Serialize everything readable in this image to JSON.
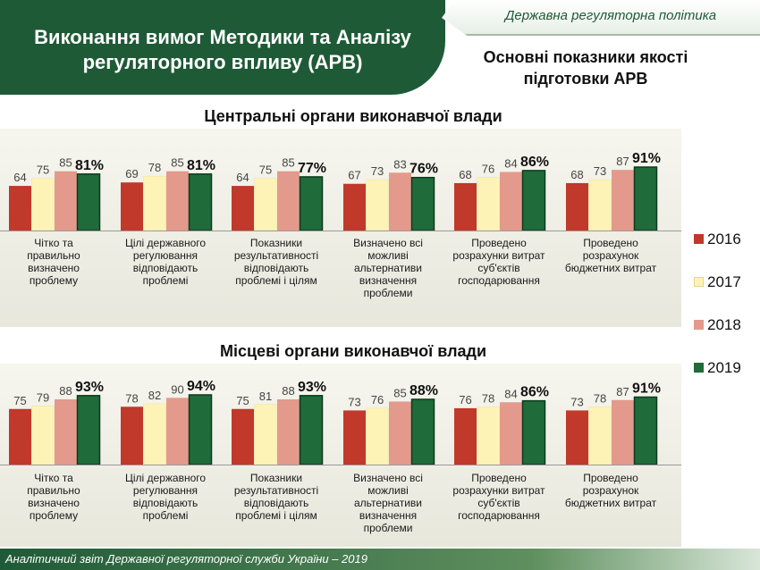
{
  "header": {
    "title": "Виконання вимог Методики та Аналізу регуляторного впливу (АРВ)",
    "policy": "Державна регуляторна політика"
  },
  "subtitle": "Основні показники якості підготовки АРВ",
  "footer": "Аналітичний звіт Державної регуляторної служби України – 2019",
  "chart_data": [
    {
      "type": "bar",
      "title": "Центральні органи виконавчої влади",
      "categories": [
        "Чітко та правильно визначено проблему",
        "Цілі державного регулювання відповідають проблемі",
        "Показники результативності відповідають проблемі і цілям",
        "Визначено всі можливі альтернативи визначення проблеми",
        "Проведено розрахунки витрат суб'єктів господарювання",
        "Проведено розрахунок бюджетних витрат"
      ],
      "series": [
        {
          "name": "2016",
          "color": "#c0392b",
          "values": [
            64,
            69,
            64,
            67,
            68,
            68
          ]
        },
        {
          "name": "2017",
          "color": "#fdf3b7",
          "values": [
            75,
            78,
            75,
            73,
            76,
            73
          ]
        },
        {
          "name": "2018",
          "color": "#e39a8c",
          "values": [
            85,
            85,
            85,
            83,
            84,
            87
          ]
        },
        {
          "name": "2019",
          "color": "#1f6b3a",
          "values": [
            81,
            81,
            77,
            76,
            86,
            91
          ],
          "labels": [
            "81%",
            "81%",
            "77%",
            "76%",
            "86%",
            "91%"
          ]
        }
      ],
      "ylim": [
        0,
        100
      ]
    },
    {
      "type": "bar",
      "title": "Місцеві органи виконавчої влади",
      "categories": [
        "Чітко та правильно визначено проблему",
        "Цілі державного регулювання відповідають проблемі",
        "Показники результативності відповідають проблемі і цілям",
        "Визначено всі можливі альтернативи визначення проблеми",
        "Проведено розрахунки витрат суб'єктів господарювання",
        "Проведено розрахунок бюджетних витрат"
      ],
      "series": [
        {
          "name": "2016",
          "color": "#c0392b",
          "values": [
            75,
            78,
            75,
            73,
            76,
            73
          ]
        },
        {
          "name": "2017",
          "color": "#fdf3b7",
          "values": [
            79,
            82,
            81,
            76,
            78,
            78
          ]
        },
        {
          "name": "2018",
          "color": "#e39a8c",
          "values": [
            88,
            90,
            88,
            85,
            84,
            87
          ]
        },
        {
          "name": "2019",
          "color": "#1f6b3a",
          "values": [
            93,
            94,
            93,
            88,
            86,
            91
          ],
          "labels": [
            "93%",
            "94%",
            "93%",
            "88%",
            "86%",
            "91%"
          ]
        }
      ],
      "ylim": [
        0,
        100
      ]
    }
  ]
}
